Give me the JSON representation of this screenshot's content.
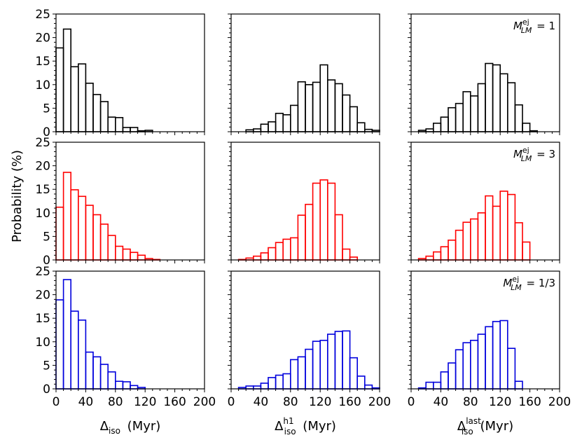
{
  "chart_data": {
    "type": "histogram-grid",
    "bin_edges": [
      0,
      10,
      20,
      30,
      40,
      50,
      60,
      70,
      80,
      90,
      100,
      110,
      120,
      130,
      140,
      150,
      160,
      170,
      180,
      190,
      200
    ],
    "xlim": [
      0,
      200
    ],
    "ylim": [
      0,
      25
    ],
    "xticks": [
      0,
      40,
      80,
      120,
      160,
      200
    ],
    "xtick_labels": [
      "0",
      "40",
      "80",
      "120",
      "160",
      "200"
    ],
    "yticks": [
      0,
      5,
      10,
      15,
      20,
      25
    ],
    "ytick_labels": [
      "0",
      "5",
      "10",
      "15",
      "20",
      "25"
    ],
    "ylabel": "Probability (%)",
    "columns": [
      {
        "xlabel_base": "Δ",
        "xlabel_sub": "iso",
        "xlabel_sup": "",
        "xlabel_unit": "(Myr)"
      },
      {
        "xlabel_base": "Δ",
        "xlabel_sub": "iso",
        "xlabel_sup": "h1",
        "xlabel_unit": "(Myr)"
      },
      {
        "xlabel_base": "Δ",
        "xlabel_sub": "iso",
        "xlabel_sup": "last",
        "xlabel_unit": "(Myr)"
      }
    ],
    "rows": [
      {
        "color": "#000000",
        "annotation": {
          "symbol": "M",
          "sub": "LM",
          "sup": "ej",
          "value": "= 1"
        },
        "panels": [
          [
            17.8,
            21.8,
            13.8,
            14.4,
            10.3,
            7.9,
            6.4,
            3.1,
            3.0,
            0.9,
            0.9,
            0.2,
            0.3,
            0,
            0,
            0,
            0,
            0,
            0,
            0
          ],
          [
            0,
            0,
            0.4,
            0.6,
            1.6,
            2.1,
            3.9,
            3.6,
            5.6,
            10.6,
            10.0,
            10.5,
            14.2,
            11.0,
            10.2,
            7.8,
            5.3,
            1.9,
            0.5,
            0.3
          ],
          [
            0,
            0.3,
            0.6,
            1.8,
            3.1,
            5.1,
            6.0,
            8.5,
            7.6,
            10.2,
            14.5,
            14.2,
            12.3,
            10.4,
            5.7,
            1.8,
            0.2,
            0,
            0,
            0
          ]
        ]
      },
      {
        "color": "#ff0000",
        "annotation": {
          "symbol": "M",
          "sub": "LM",
          "sup": "ej",
          "value": "= 3"
        },
        "panels": [
          [
            11.2,
            18.6,
            14.9,
            13.5,
            11.6,
            9.6,
            7.6,
            5.2,
            2.9,
            2.3,
            1.6,
            1.0,
            0.3,
            0.1,
            0,
            0,
            0,
            0,
            0,
            0
          ],
          [
            0,
            0.1,
            0.4,
            0.8,
            1.5,
            2.6,
            3.7,
            4.4,
            4.7,
            9.5,
            11.8,
            16.3,
            17.0,
            16.3,
            9.6,
            2.3,
            0.6,
            0,
            0,
            0
          ],
          [
            0,
            0.3,
            0.8,
            1.7,
            2.8,
            4.2,
            6.3,
            8.0,
            8.7,
            10.0,
            13.6,
            11.4,
            14.6,
            13.9,
            7.9,
            3.8,
            0,
            0,
            0,
            0
          ]
        ]
      },
      {
        "color": "#0000dd",
        "annotation": {
          "symbol": "M",
          "sub": "LM",
          "sup": "ej",
          "value": "= 1/3"
        },
        "panels": [
          [
            18.9,
            23.2,
            16.5,
            14.6,
            7.8,
            6.8,
            5.2,
            3.6,
            1.6,
            1.5,
            0.7,
            0.3,
            0,
            0,
            0,
            0,
            0,
            0,
            0,
            0
          ],
          [
            0,
            0.3,
            0.6,
            0.6,
            1.2,
            2.4,
            2.9,
            3.2,
            6.2,
            6.8,
            8.4,
            10.1,
            10.3,
            11.6,
            12.2,
            12.3,
            6.6,
            2.7,
            0.8,
            0.2
          ],
          [
            0,
            0.2,
            1.4,
            1.4,
            3.6,
            5.5,
            8.3,
            9.8,
            10.3,
            11.6,
            13.2,
            14.3,
            14.5,
            8.6,
            1.6,
            0,
            0,
            0,
            0,
            0
          ]
        ]
      }
    ]
  }
}
